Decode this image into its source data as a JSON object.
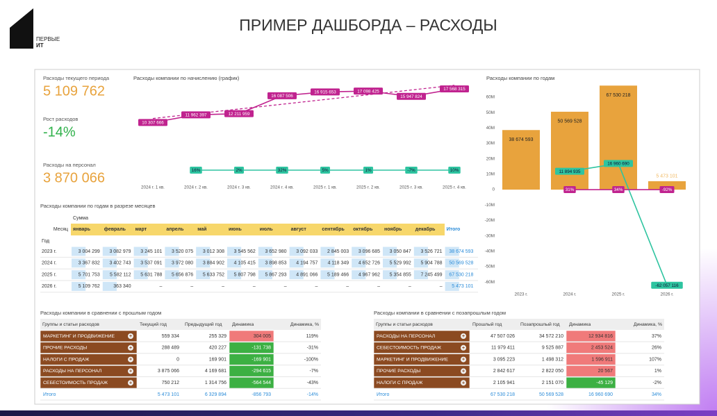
{
  "header": {
    "logo_line1": "ПЕРВЫЕ",
    "logo_line2": "ИТ",
    "title": "ПРИМЕР ДАШБОРДА – РАСХОДЫ"
  },
  "kpis": [
    {
      "label": "Расходы текущего периода",
      "value": "5 109 762",
      "color": "#e8a33d"
    },
    {
      "label": "Рост расходов",
      "value": "-14%",
      "color": "#2fb14a"
    },
    {
      "label": "Расходы на персонал",
      "value": "3 870 066",
      "color": "#e8a33d"
    }
  ],
  "chart_data": [
    {
      "type": "line",
      "title": "Расходы компании по начислению (график)",
      "categories": [
        "2024 г. 1 кв.",
        "2024 г. 2 кв.",
        "2024 г. 3 кв.",
        "2024 г. 4 кв.",
        "2025 г. 1 кв.",
        "2025 г. 2 кв.",
        "2025 г. 3 кв.",
        "2025 г. 4 кв."
      ],
      "trendline": true,
      "series": [
        {
          "color": "#c0238f",
          "values": [
            10307666,
            11962397,
            12211959,
            16087506,
            16915653,
            17098425,
            15947824,
            17568315
          ],
          "value_labels": [
            "10 307 666",
            "11 962 397",
            "12 211 959",
            "16 087 506",
            "16 915 653",
            "17 098 425",
            "15 947 824",
            "17 568 315"
          ]
        },
        {
          "color": "#2ec4a0",
          "values": [
            null,
            16,
            2,
            32,
            5,
            1,
            -7,
            10
          ],
          "value_labels": [
            null,
            "16%",
            "2%",
            "32%",
            "5%",
            "1%",
            "-7%",
            "10%"
          ]
        }
      ]
    },
    {
      "type": "bar",
      "title": "Расходы компании по годам",
      "categories": [
        "2023 г.",
        "2024 г.",
        "2025 г.",
        "2026 г."
      ],
      "ylim": [
        -64000000,
        69000000
      ],
      "grid": false,
      "yticks": [
        {
          "value": 60000000,
          "label": "60M"
        },
        {
          "value": 50000000,
          "label": "50M"
        },
        {
          "value": 40000000,
          "label": "40M"
        },
        {
          "value": 30000000,
          "label": "30M"
        },
        {
          "value": 20000000,
          "label": "20M"
        },
        {
          "value": 10000000,
          "label": "10M"
        },
        0,
        {
          "value": -10000000,
          "label": "-10M"
        },
        {
          "value": -20000000,
          "label": "-20M"
        },
        {
          "value": -30000000,
          "label": "-30M"
        },
        {
          "value": -40000000,
          "label": "-40M"
        },
        {
          "value": -50000000,
          "label": "-50M"
        },
        {
          "value": -60000000,
          "label": "-60M"
        }
      ],
      "series": [
        {
          "type": "bar",
          "color": "#e8a33d",
          "values": [
            38674593,
            50569528,
            67530218,
            5473101
          ],
          "value_labels": [
            "38 674 593",
            "50 569 528",
            "67 530 218",
            "5 473 101"
          ]
        },
        {
          "type": "line",
          "color": "#2ec4a0",
          "values": [
            null,
            11894935,
            16960690,
            -62057116
          ],
          "value_labels": [
            null,
            "11 894 935",
            "16 960 690",
            "-62 057 116"
          ]
        },
        {
          "type": "line",
          "color": "#c0238f",
          "values": [
            null,
            31,
            34,
            -92
          ],
          "value_labels": [
            null,
            "31%",
            "34%",
            "-92%"
          ]
        }
      ]
    }
  ],
  "month_table": {
    "title": "Расходы компании по годам в разрезе месяцев",
    "measure": "Сумма",
    "column_header": "Месяц",
    "row_header": "Год",
    "columns": [
      "январь",
      "февраль",
      "март",
      "апрель",
      "май",
      "июнь",
      "июль",
      "август",
      "сентябрь",
      "октябрь",
      "ноябрь",
      "декабрь",
      "Итого"
    ],
    "rows": [
      {
        "label": "2023 г.",
        "cells": [
          "3 004 299",
          "3 082 979",
          "3 245 101",
          "3 520 075",
          "3 012 308",
          "3 545 562",
          "3 652 980",
          "3 092 033",
          "2 845 003",
          "3 096 685",
          "3 050 847",
          "3 526 721",
          "38 674 593"
        ]
      },
      {
        "label": "2024 г.",
        "cells": [
          "3 367 832",
          "3 402 743",
          "3 537 091",
          "3 972 080",
          "3 884 902",
          "4 105 415",
          "3 898 853",
          "4 194 757",
          "4 118 349",
          "4 652 726",
          "5 529 992",
          "5 904 788",
          "50 569 528"
        ]
      },
      {
        "label": "2025 г.",
        "cells": [
          "5 701 753",
          "5 582 112",
          "5 631 788",
          "5 656 876",
          "5 633 752",
          "5 807 798",
          "5 867 293",
          "4 891 066",
          "5 189 466",
          "4 967 962",
          "5 354 855",
          "7 245 499",
          "67 530 218"
        ]
      },
      {
        "label": "2026 г.",
        "cells": [
          "5 109 762",
          "363 340",
          "–",
          "–",
          "–",
          "–",
          "–",
          "–",
          "–",
          "–",
          "–",
          "–",
          "5 473 101"
        ]
      }
    ]
  },
  "comparisons": [
    {
      "title": "Расходы компании в сравнении с прошлым годом",
      "headers": [
        "Группы и статьи расходов",
        "Текущий год",
        "Предыдущий год",
        "Динамика",
        "Динамика, %"
      ],
      "rows": [
        [
          "МАРКЕТИНГ И ПРОДВИЖЕНИЕ",
          "559 334",
          "255 329",
          "304 005",
          "119%"
        ],
        [
          "ПРОЧИЕ РАСХОДЫ",
          "288 489",
          "420 227",
          "-131 738",
          "-31%"
        ],
        [
          "НАЛОГИ С ПРОДАЖ",
          "0",
          "169 901",
          "-169 901",
          "-100%"
        ],
        [
          "РАСХОДЫ НА ПЕРСОНАЛ",
          "3 875 066",
          "4 169 681",
          "-294 615",
          "-7%"
        ],
        [
          "СЕБЕСТОИМОСТЬ ПРОДАЖ",
          "750 212",
          "1 314 756",
          "-564 544",
          "-43%"
        ]
      ],
      "total": [
        "Итого",
        "5 473 101",
        "6 329 894",
        "-856 793",
        "-14%"
      ]
    },
    {
      "title": "Расходы компании в сравнении с позапрошлым годом",
      "headers": [
        "Группы и статьи расходов",
        "Прошлый год",
        "Позапрошлый год",
        "Динамика",
        "Динамика, %"
      ],
      "rows": [
        [
          "РАСХОДЫ НА ПЕРСОНАЛ",
          "47 507 026",
          "34 572 210",
          "12 934 816",
          "37%"
        ],
        [
          "СЕБЕСТОИМОСТЬ ПРОДАЖ",
          "11 979 411",
          "9 525 887",
          "2 453 524",
          "26%"
        ],
        [
          "МАРКЕТИНГ И ПРОДВИЖЕНИЕ",
          "3 095 223",
          "1 498 312",
          "1 596 911",
          "107%"
        ],
        [
          "ПРОЧИЕ РАСХОДЫ",
          "2 842 617",
          "2 822 050",
          "20 567",
          "1%"
        ],
        [
          "НАЛОГИ С ПРОДАЖ",
          "2 105 941",
          "2 151 070",
          "-45 129",
          "-2%"
        ]
      ],
      "total": [
        "Итого",
        "67 530 218",
        "50 569 528",
        "16 960 690",
        "34%"
      ]
    }
  ]
}
